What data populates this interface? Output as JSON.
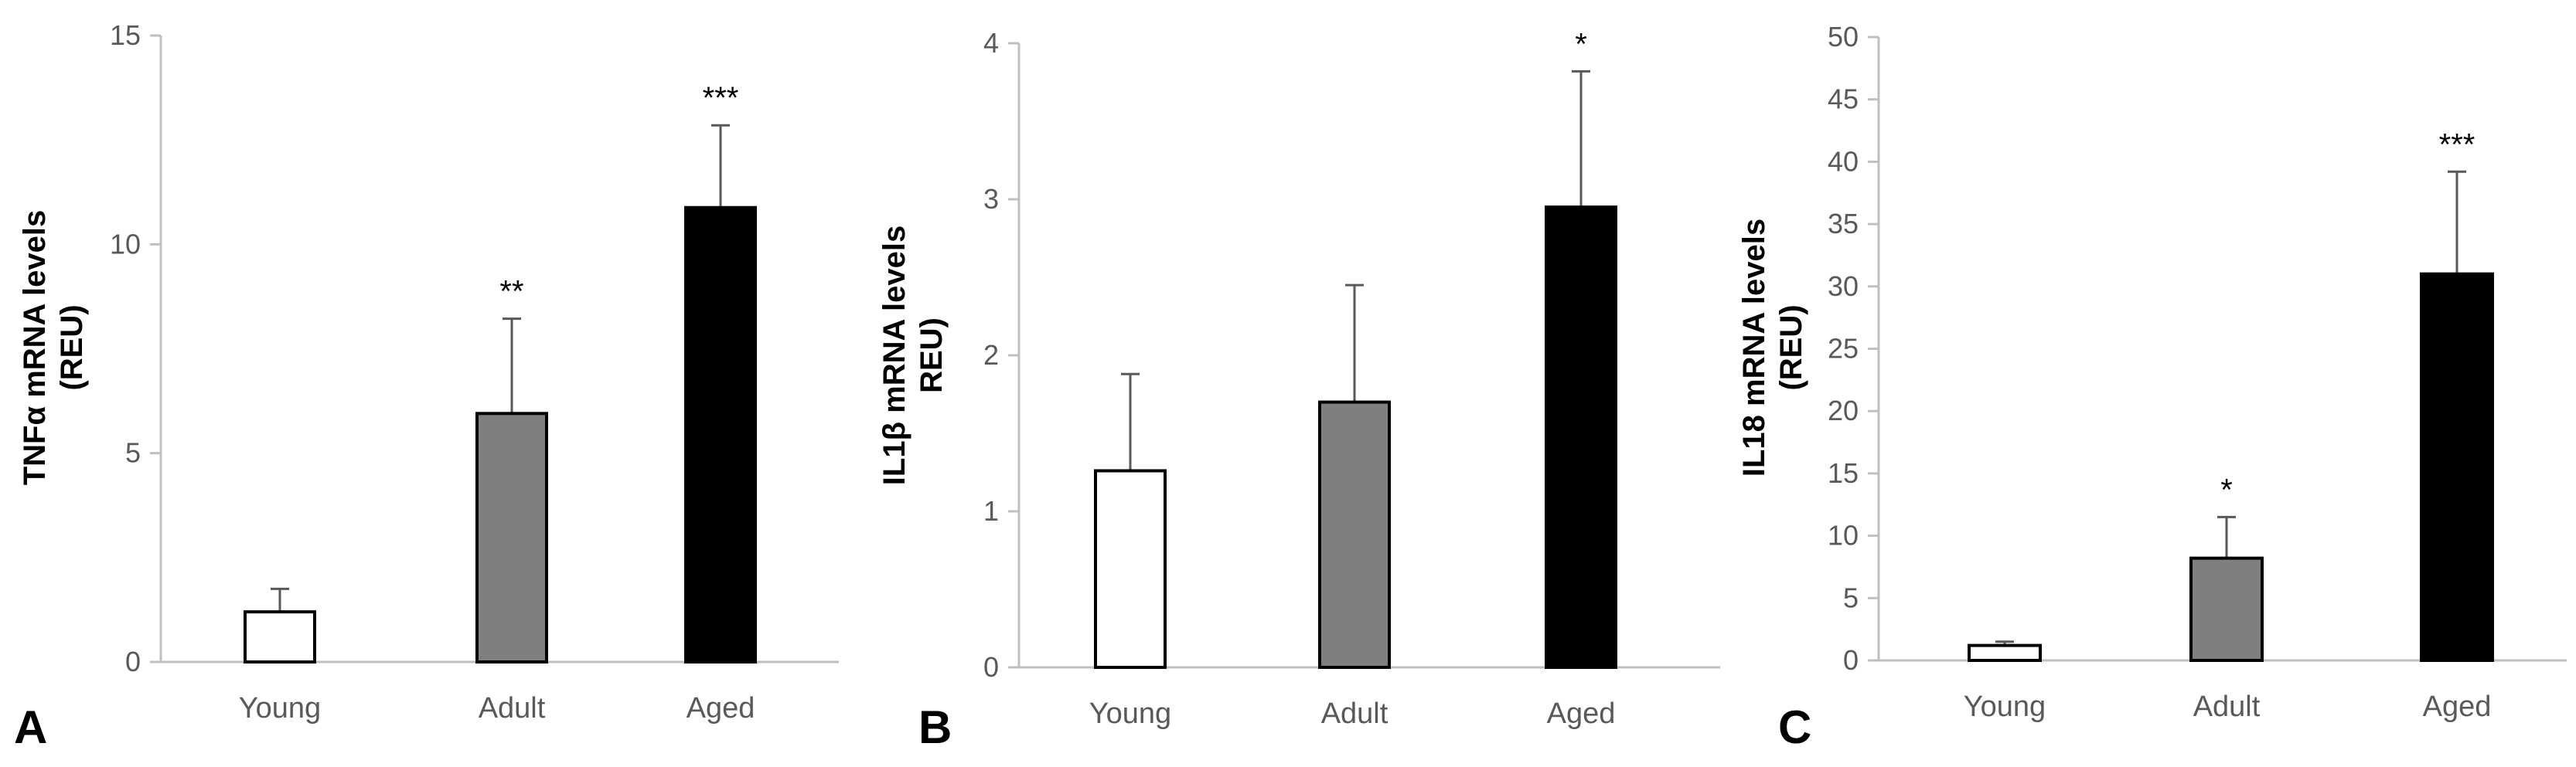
{
  "chart_data": [
    {
      "type": "bar",
      "panel": "A",
      "categories": [
        "Young",
        "Adult",
        "Aged"
      ],
      "values": [
        1.2,
        5.95,
        10.88
      ],
      "error_upper": [
        1.75,
        8.22,
        12.85
      ],
      "significance": [
        "",
        "**",
        "***"
      ],
      "bar_colors": [
        "#ffffff",
        "#7f7f7f",
        "#000000"
      ],
      "ylabel_lines": [
        "TNFα mRNA levels",
        "(REU)"
      ],
      "yticks": [
        "0",
        "5",
        "10",
        "15"
      ],
      "ylim": [
        0,
        15
      ],
      "ytick_values": [
        0,
        5,
        10,
        15
      ]
    },
    {
      "type": "bar",
      "panel": "B",
      "categories": [
        "Young",
        "Adult",
        "Aged"
      ],
      "values": [
        1.26,
        1.7,
        2.95
      ],
      "error_upper": [
        1.88,
        2.45,
        3.82
      ],
      "significance": [
        "",
        "",
        "*"
      ],
      "bar_colors": [
        "#ffffff",
        "#7f7f7f",
        "#000000"
      ],
      "ylabel_lines": [
        "IL1β mRNA levels",
        "REU)"
      ],
      "yticks": [
        "0",
        "1",
        "2",
        "3",
        "4"
      ],
      "ylim": [
        0,
        4
      ],
      "ytick_values": [
        0,
        1,
        2,
        3,
        4
      ]
    },
    {
      "type": "bar",
      "panel": "C",
      "categories": [
        "Young",
        "Adult",
        "Aged"
      ],
      "values": [
        1.2,
        8.2,
        31.0
      ],
      "error_upper": [
        1.5,
        11.5,
        39.2
      ],
      "significance": [
        "",
        "*",
        "***"
      ],
      "bar_colors": [
        "#ffffff",
        "#7f7f7f",
        "#000000"
      ],
      "ylabel_lines": [
        "IL18 mRNA levels",
        "(REU)"
      ],
      "yticks": [
        "0",
        "5",
        "10",
        "15",
        "20",
        "25",
        "30",
        "35",
        "40",
        "45",
        "50"
      ],
      "ylim": [
        0,
        50
      ],
      "ytick_values": [
        0,
        5,
        10,
        15,
        20,
        25,
        30,
        35,
        40,
        45,
        50
      ]
    }
  ]
}
